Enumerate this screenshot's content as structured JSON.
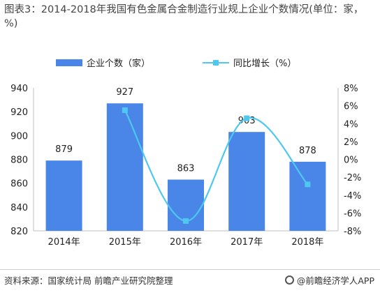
{
  "title": "图表3：2014-2018年我国有色金属合金制造行业规上企业个数情况(单位：家，%)",
  "source": "资料来源：国家统计局 前瞻产业研究院整理",
  "brand": "@前瞻经济学人APP",
  "colors": {
    "bar": "#4a86e8",
    "line": "#4ec8f0"
  },
  "chart_data": {
    "type": "bar",
    "categories": [
      "2014年",
      "2015年",
      "2016年",
      "2017年",
      "2018年"
    ],
    "series": [
      {
        "name": "企业个数（家）",
        "type": "bar",
        "axis": "left",
        "values": [
          879,
          927,
          863,
          903,
          878
        ]
      },
      {
        "name": "同比增长（%）",
        "type": "line",
        "axis": "right",
        "values": [
          null,
          5.5,
          -6.9,
          4.6,
          -2.8
        ]
      }
    ],
    "ylim_left": [
      820,
      940
    ],
    "yticks_left": [
      820,
      840,
      860,
      880,
      900,
      920,
      940
    ],
    "ylim_right": [
      -8,
      8
    ],
    "yticks_right": [
      "-8%",
      "-6%",
      "-4%",
      "-2%",
      "0%",
      "2%",
      "4%",
      "6%",
      "8%"
    ],
    "data_labels": [
      "879",
      "927",
      "863",
      "903",
      "878"
    ],
    "legend_position": "top",
    "grid": false
  }
}
